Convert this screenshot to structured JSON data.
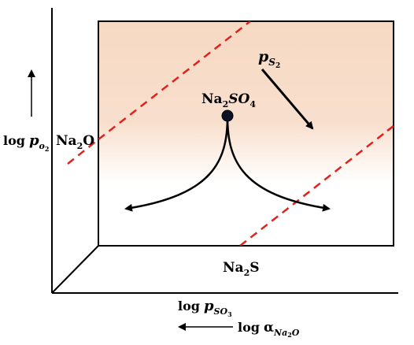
{
  "diagram": {
    "species": {
      "na2so4": {
        "base": "Na",
        "sub1": "2",
        "mid": "SO",
        "sub2": "4"
      },
      "na2o": {
        "base": "Na",
        "sub1": "2",
        "mid": "O"
      },
      "na2s": {
        "base": "Na",
        "sub1": "2",
        "mid": "S"
      }
    },
    "labels": {
      "ps2": {
        "main": "p",
        "sub": "S",
        "subsub": "2"
      },
      "log_po2": {
        "log": "log",
        "main": "p",
        "sub": "o",
        "subsub": "2"
      },
      "log_pso3": {
        "log": "log",
        "main": "p",
        "sub": "SO",
        "subsub": "3"
      },
      "log_alpha": {
        "log": "log",
        "main": "α",
        "sub": "Na",
        "subsub": "2",
        "subend": "O"
      }
    },
    "colors": {
      "boundary": "#e0221c",
      "field_top": "#f6d9c3",
      "field_bottom": "#ffffff",
      "point": "#0b1226",
      "ink": "#000000"
    }
  }
}
